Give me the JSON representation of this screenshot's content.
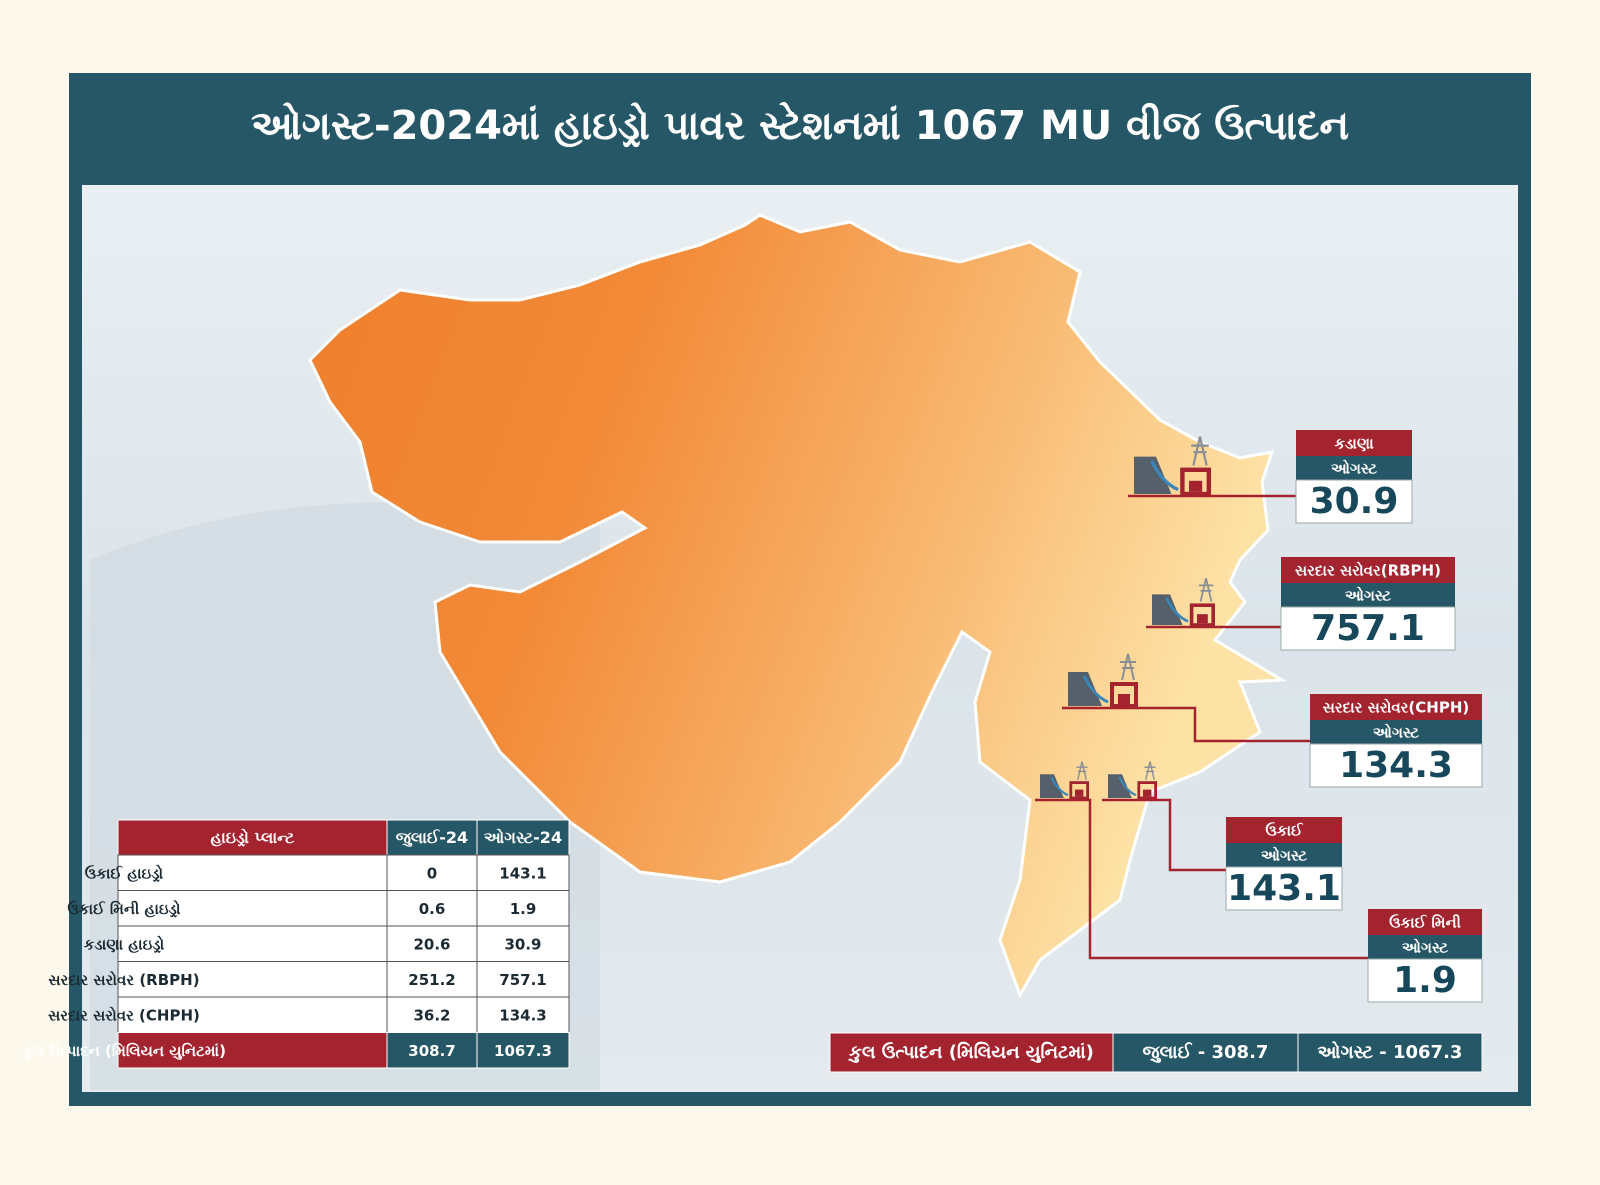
{
  "title": "ઓગસ્ટ-2024માં હાઇડ્રો પાવર સ્ટેશનમાં 1067 MU વીજ ઉત્પાદન",
  "callouts": [
    {
      "name": "કડાણા",
      "label": "ઓગસ્ટ",
      "value": 30.9
    },
    {
      "name": "સરદાર સરોવર(RBPH)",
      "label": "ઓગસ્ટ",
      "value": 757.1
    },
    {
      "name": "સરદાર સરોવર(CHPH)",
      "label": "ઓગસ્ટ",
      "value": 134.3
    },
    {
      "name": "ઉકાઈ",
      "label": "ઓગસ્ટ",
      "value": 143.1
    },
    {
      "name": "ઉકાઈ મિની",
      "label": "ઓગસ્ટ",
      "value": 1.9
    }
  ],
  "table": {
    "header": [
      "હાઇડ્રો પ્લાન્ટ",
      "જુલાઈ-24",
      "ઓગસ્ટ-24"
    ],
    "rows": [
      [
        "ઉકાઈ હાઇડ્રો",
        0,
        143.1
      ],
      [
        "ઉકાઈ મિની હાઇડ્રો",
        0.6,
        1.9
      ],
      [
        "કડાણા હાઇડ્રો",
        20.6,
        30.9
      ],
      [
        "સરદાર સરોવર (RBPH)",
        251.2,
        757.1
      ],
      [
        "સરદાર સરોવર (CHPH)",
        36.2,
        134.3
      ],
      [
        "કુલ ઉત્પાદન (મિલિયન યુનિટમાં)",
        308.7,
        1067.3
      ]
    ]
  },
  "total_bar": {
    "label": "કુલ ઉત્પાદન (મિલિયન યુનિટમાં)",
    "july": "જુલાઈ - 308.7",
    "august": "ઓગસ્ટ - 1067.3"
  }
}
